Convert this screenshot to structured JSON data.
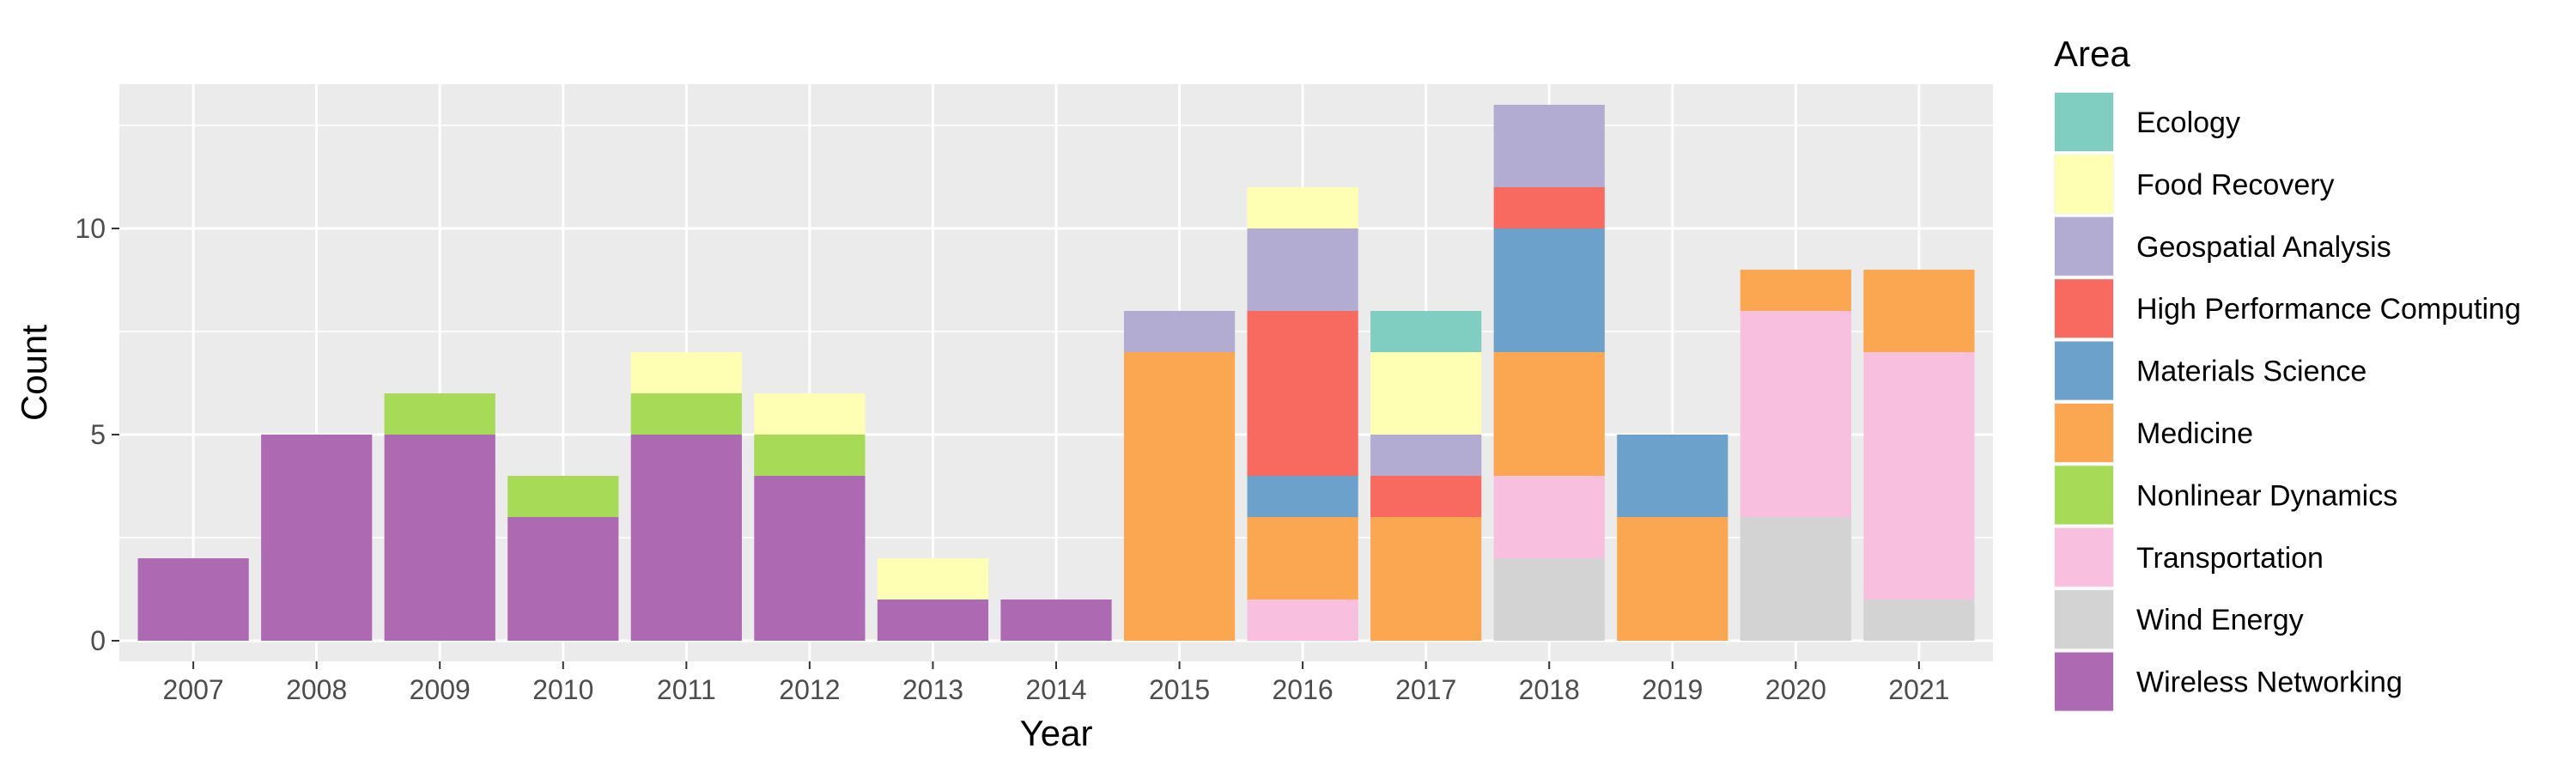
{
  "chart_data": {
    "type": "bar",
    "stacked": true,
    "xlabel": "Year",
    "ylabel": "Count",
    "ylim": [
      -0.5,
      13.5
    ],
    "yticks": [
      0,
      5,
      10
    ],
    "grid": true,
    "legend_title": "Area",
    "legend_position": "right",
    "categories": [
      "2007",
      "2008",
      "2009",
      "2010",
      "2011",
      "2012",
      "2013",
      "2014",
      "2015",
      "2016",
      "2017",
      "2018",
      "2019",
      "2020",
      "2021"
    ],
    "series": [
      {
        "name": "Ecology",
        "color": "#80CDC1",
        "values": [
          0,
          0,
          0,
          0,
          0,
          0,
          0,
          0,
          0,
          0,
          1,
          0,
          0,
          0,
          0
        ]
      },
      {
        "name": "Food Recovery",
        "color": "#FFFFB3",
        "values": [
          0,
          0,
          0,
          0,
          1,
          1,
          1,
          0,
          0,
          1,
          2,
          0,
          0,
          0,
          0
        ]
      },
      {
        "name": "Geospatial Analysis",
        "color": "#B2ABD2",
        "values": [
          0,
          0,
          0,
          0,
          0,
          0,
          0,
          0,
          1,
          2,
          1,
          2,
          0,
          0,
          0
        ]
      },
      {
        "name": "High Performance Computing",
        "color": "#F8695F",
        "values": [
          0,
          0,
          0,
          0,
          0,
          0,
          0,
          0,
          0,
          4,
          1,
          1,
          0,
          0,
          0
        ]
      },
      {
        "name": "Materials Science",
        "color": "#6BA1CA",
        "values": [
          0,
          0,
          0,
          0,
          0,
          0,
          0,
          0,
          0,
          1,
          0,
          3,
          2,
          0,
          0
        ]
      },
      {
        "name": "Medicine",
        "color": "#FBA651",
        "values": [
          0,
          0,
          0,
          0,
          0,
          0,
          0,
          0,
          7,
          2,
          3,
          3,
          3,
          1,
          2
        ]
      },
      {
        "name": "Nonlinear Dynamics",
        "color": "#A6DA57",
        "values": [
          0,
          0,
          1,
          1,
          1,
          1,
          0,
          0,
          0,
          0,
          0,
          0,
          0,
          0,
          0
        ]
      },
      {
        "name": "Transportation",
        "color": "#F8C0DE",
        "values": [
          0,
          0,
          0,
          0,
          0,
          0,
          0,
          0,
          0,
          1,
          0,
          2,
          0,
          5,
          6
        ]
      },
      {
        "name": "Wind Energy",
        "color": "#D3D3D3",
        "values": [
          0,
          0,
          0,
          0,
          0,
          0,
          0,
          0,
          0,
          0,
          0,
          2,
          0,
          3,
          1
        ]
      },
      {
        "name": "Wireless Networking",
        "color": "#AD69B1",
        "values": [
          2,
          5,
          5,
          3,
          5,
          4,
          1,
          1,
          0,
          0,
          0,
          0,
          0,
          0,
          0
        ]
      }
    ]
  }
}
